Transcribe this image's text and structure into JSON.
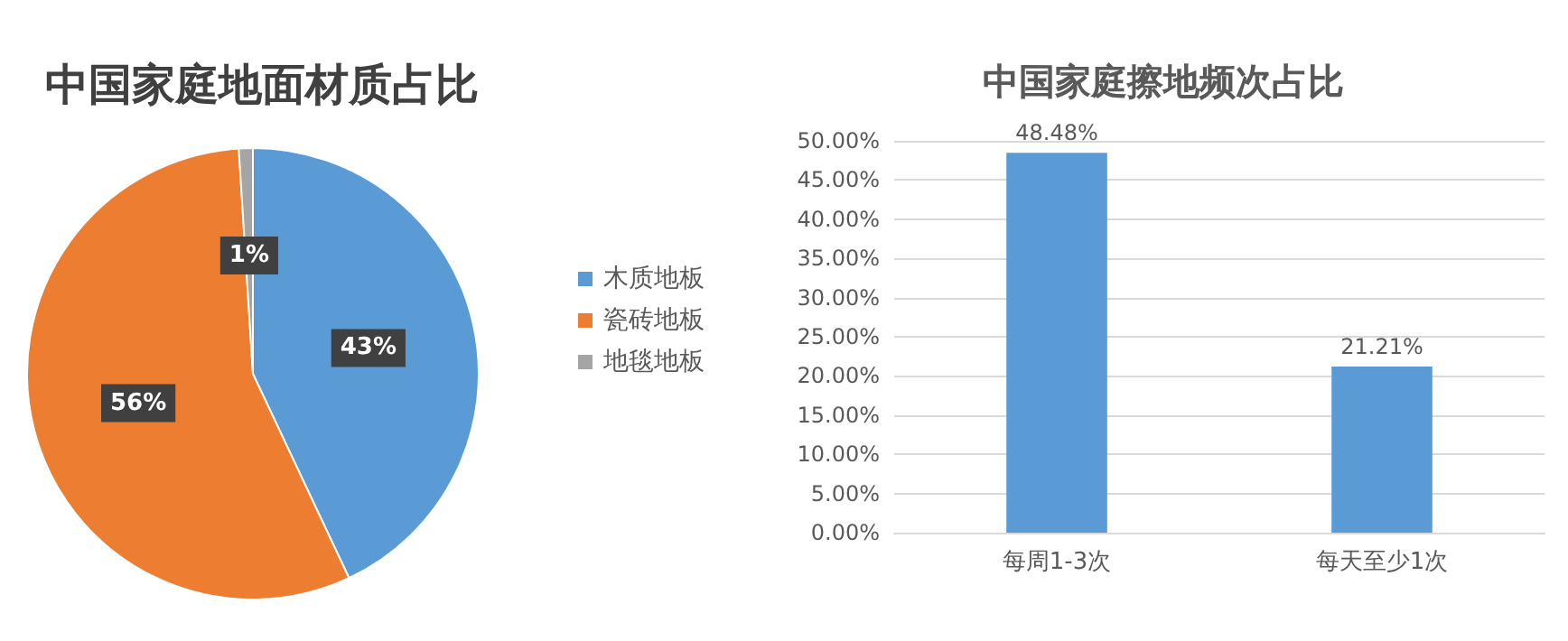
{
  "chart_data": [
    {
      "type": "pie",
      "title": "中国家庭地面材质占比",
      "categories": [
        "木质地板",
        "瓷砖地板",
        "地毯地板"
      ],
      "values": [
        43,
        56,
        1
      ],
      "colors": [
        "#5b9bd5",
        "#ed7d31",
        "#a5a5a5"
      ],
      "value_labels": [
        "43%",
        "56%",
        "1%"
      ],
      "legend": "right"
    },
    {
      "type": "bar",
      "title": "中国家庭擦地频次占比",
      "categories": [
        "每周1-3次",
        "每天至少1次"
      ],
      "values": [
        48.48,
        21.21
      ],
      "color": "#5b9bd5",
      "value_labels": [
        "48.48%",
        "21.21%"
      ],
      "ylim": [
        0,
        50
      ],
      "yticks": [
        {
          "value": 0,
          "label": "0.00%"
        },
        {
          "value": 5,
          "label": "5.00%"
        },
        {
          "value": 10,
          "label": "10.00%"
        },
        {
          "value": 15,
          "label": "15.00%"
        },
        {
          "value": 20,
          "label": "20.00%"
        },
        {
          "value": 25,
          "label": "25.00%"
        },
        {
          "value": 30,
          "label": "30.00%"
        },
        {
          "value": 35,
          "label": "35.00%"
        },
        {
          "value": 40,
          "label": "40.00%"
        },
        {
          "value": 45,
          "label": "45.00%"
        },
        {
          "value": 50,
          "label": "50.00%"
        }
      ],
      "grid": "y"
    }
  ]
}
